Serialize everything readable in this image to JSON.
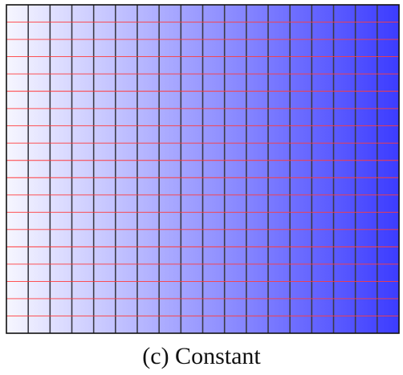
{
  "figure": {
    "caption": "(c) Constant",
    "column_count": 18,
    "row_count": 19,
    "gradient": {
      "start_color": "#f6f6ff",
      "end_color": "#3c3cff",
      "direction": "left-to-right"
    },
    "colors": {
      "column_line": "#3a3a46",
      "row_line": "#ff3b3b",
      "frame": "#111111"
    }
  }
}
